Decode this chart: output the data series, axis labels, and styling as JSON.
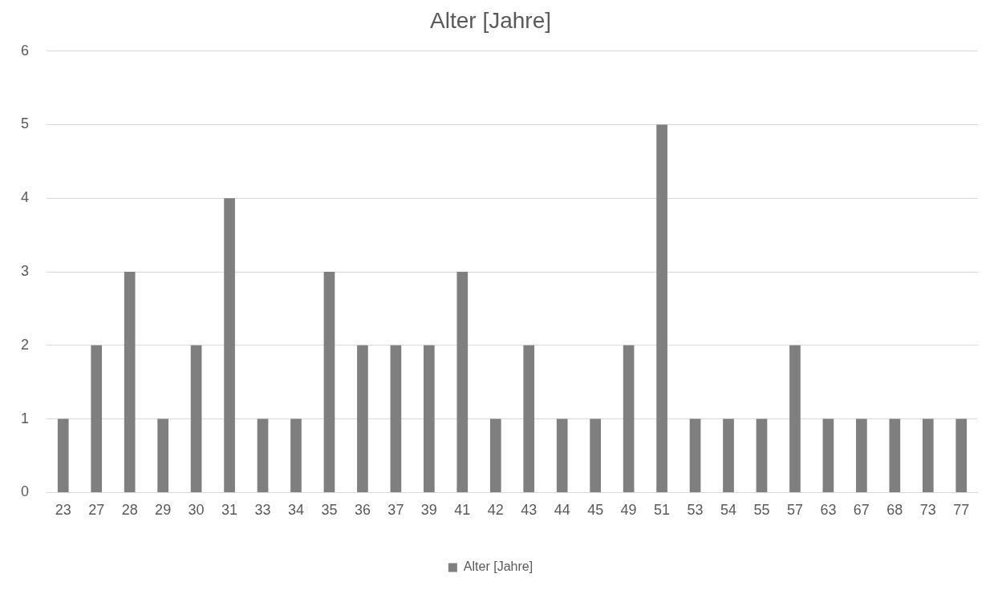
{
  "chart_data": {
    "type": "bar",
    "title": "Alter [Jahre]",
    "categories": [
      "23",
      "27",
      "28",
      "29",
      "30",
      "31",
      "33",
      "34",
      "35",
      "36",
      "37",
      "39",
      "41",
      "42",
      "43",
      "44",
      "45",
      "49",
      "51",
      "53",
      "54",
      "55",
      "57",
      "63",
      "67",
      "68",
      "73",
      "77"
    ],
    "series": [
      {
        "name": "Alter [Jahre]",
        "color": "#7f7f7f",
        "values": [
          1,
          2,
          3,
          1,
          2,
          4,
          1,
          1,
          3,
          2,
          2,
          2,
          3,
          1,
          2,
          1,
          1,
          2,
          5,
          1,
          1,
          1,
          2,
          1,
          1,
          1,
          1,
          1
        ]
      }
    ],
    "ylim": [
      0,
      6
    ],
    "yticks": [
      0,
      1,
      2,
      3,
      4,
      5,
      6
    ],
    "grid": "y",
    "legend": "bottom"
  }
}
